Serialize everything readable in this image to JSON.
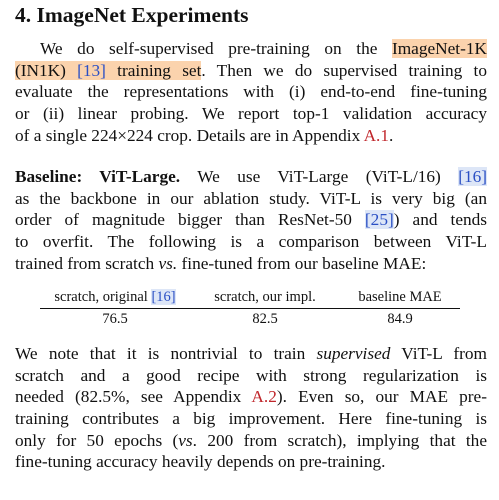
{
  "section": {
    "heading": "4. ImageNet Experiments"
  },
  "para1": {
    "lines": [
      [
        "We do self-supervised pre-training on the ",
        "ImageNet-1K",
        ""
      ],
      [
        "(IN1K) ",
        "[13]",
        " training set",
        ". Then we do supervised training to"
      ],
      [
        "evaluate the representations with (i) end-to-end fine-tuning"
      ],
      [
        "or (ii) linear probing.  We report top-1 validation accuracy"
      ],
      [
        "of a single 224×224 crop. Details are in Appendix ",
        "A.1",
        "."
      ]
    ]
  },
  "para2": {
    "bold_lead": "Baseline: ViT-Large.",
    "line1_rest": " We use ViT-Large (ViT-L/16) ",
    "cite_16": "[16]",
    "line2": "as the backbone in our ablation study. ViT-L is very big (an",
    "line3_a": "order of magnitude bigger than ResNet-50 ",
    "cite_25": "[25]",
    "line3_b": ") and tends",
    "line4": "to overfit.  The following is a comparison between ViT-L",
    "line5_a": "trained from scratch ",
    "line5_vs": "vs.",
    "line5_b": " fine-tuned from our baseline MAE:"
  },
  "table": {
    "headers": [
      "scratch, original ",
      "scratch, our impl.",
      "baseline MAE"
    ],
    "header_cite": "[16]",
    "values": [
      "76.5",
      "82.5",
      "84.9"
    ]
  },
  "para3": {
    "line1_a": "We note that it is nontrivial to train ",
    "line1_ital": "supervised",
    "line1_b": " ViT-L from",
    "line2": "scratch and a good recipe with strong regularization is",
    "line3_a": "needed (82.5%, see Appendix ",
    "line3_ref": "A.2",
    "line3_b": "). Even so, our MAE pre-",
    "line4": "training contributes a big improvement. Here fine-tuning is",
    "line5_a": "only for 50 epochs (",
    "line5_vs": "vs",
    "line5_b": ". 200 from scratch), implying that the",
    "line6": "fine-tuning accuracy heavily depends on pre-training."
  },
  "colors": {
    "highlight_orange": "#fbd3ad",
    "citation_blue": "#2a4fc4",
    "citation_box": "#dde6f7",
    "reference_red": "#c0262b"
  }
}
